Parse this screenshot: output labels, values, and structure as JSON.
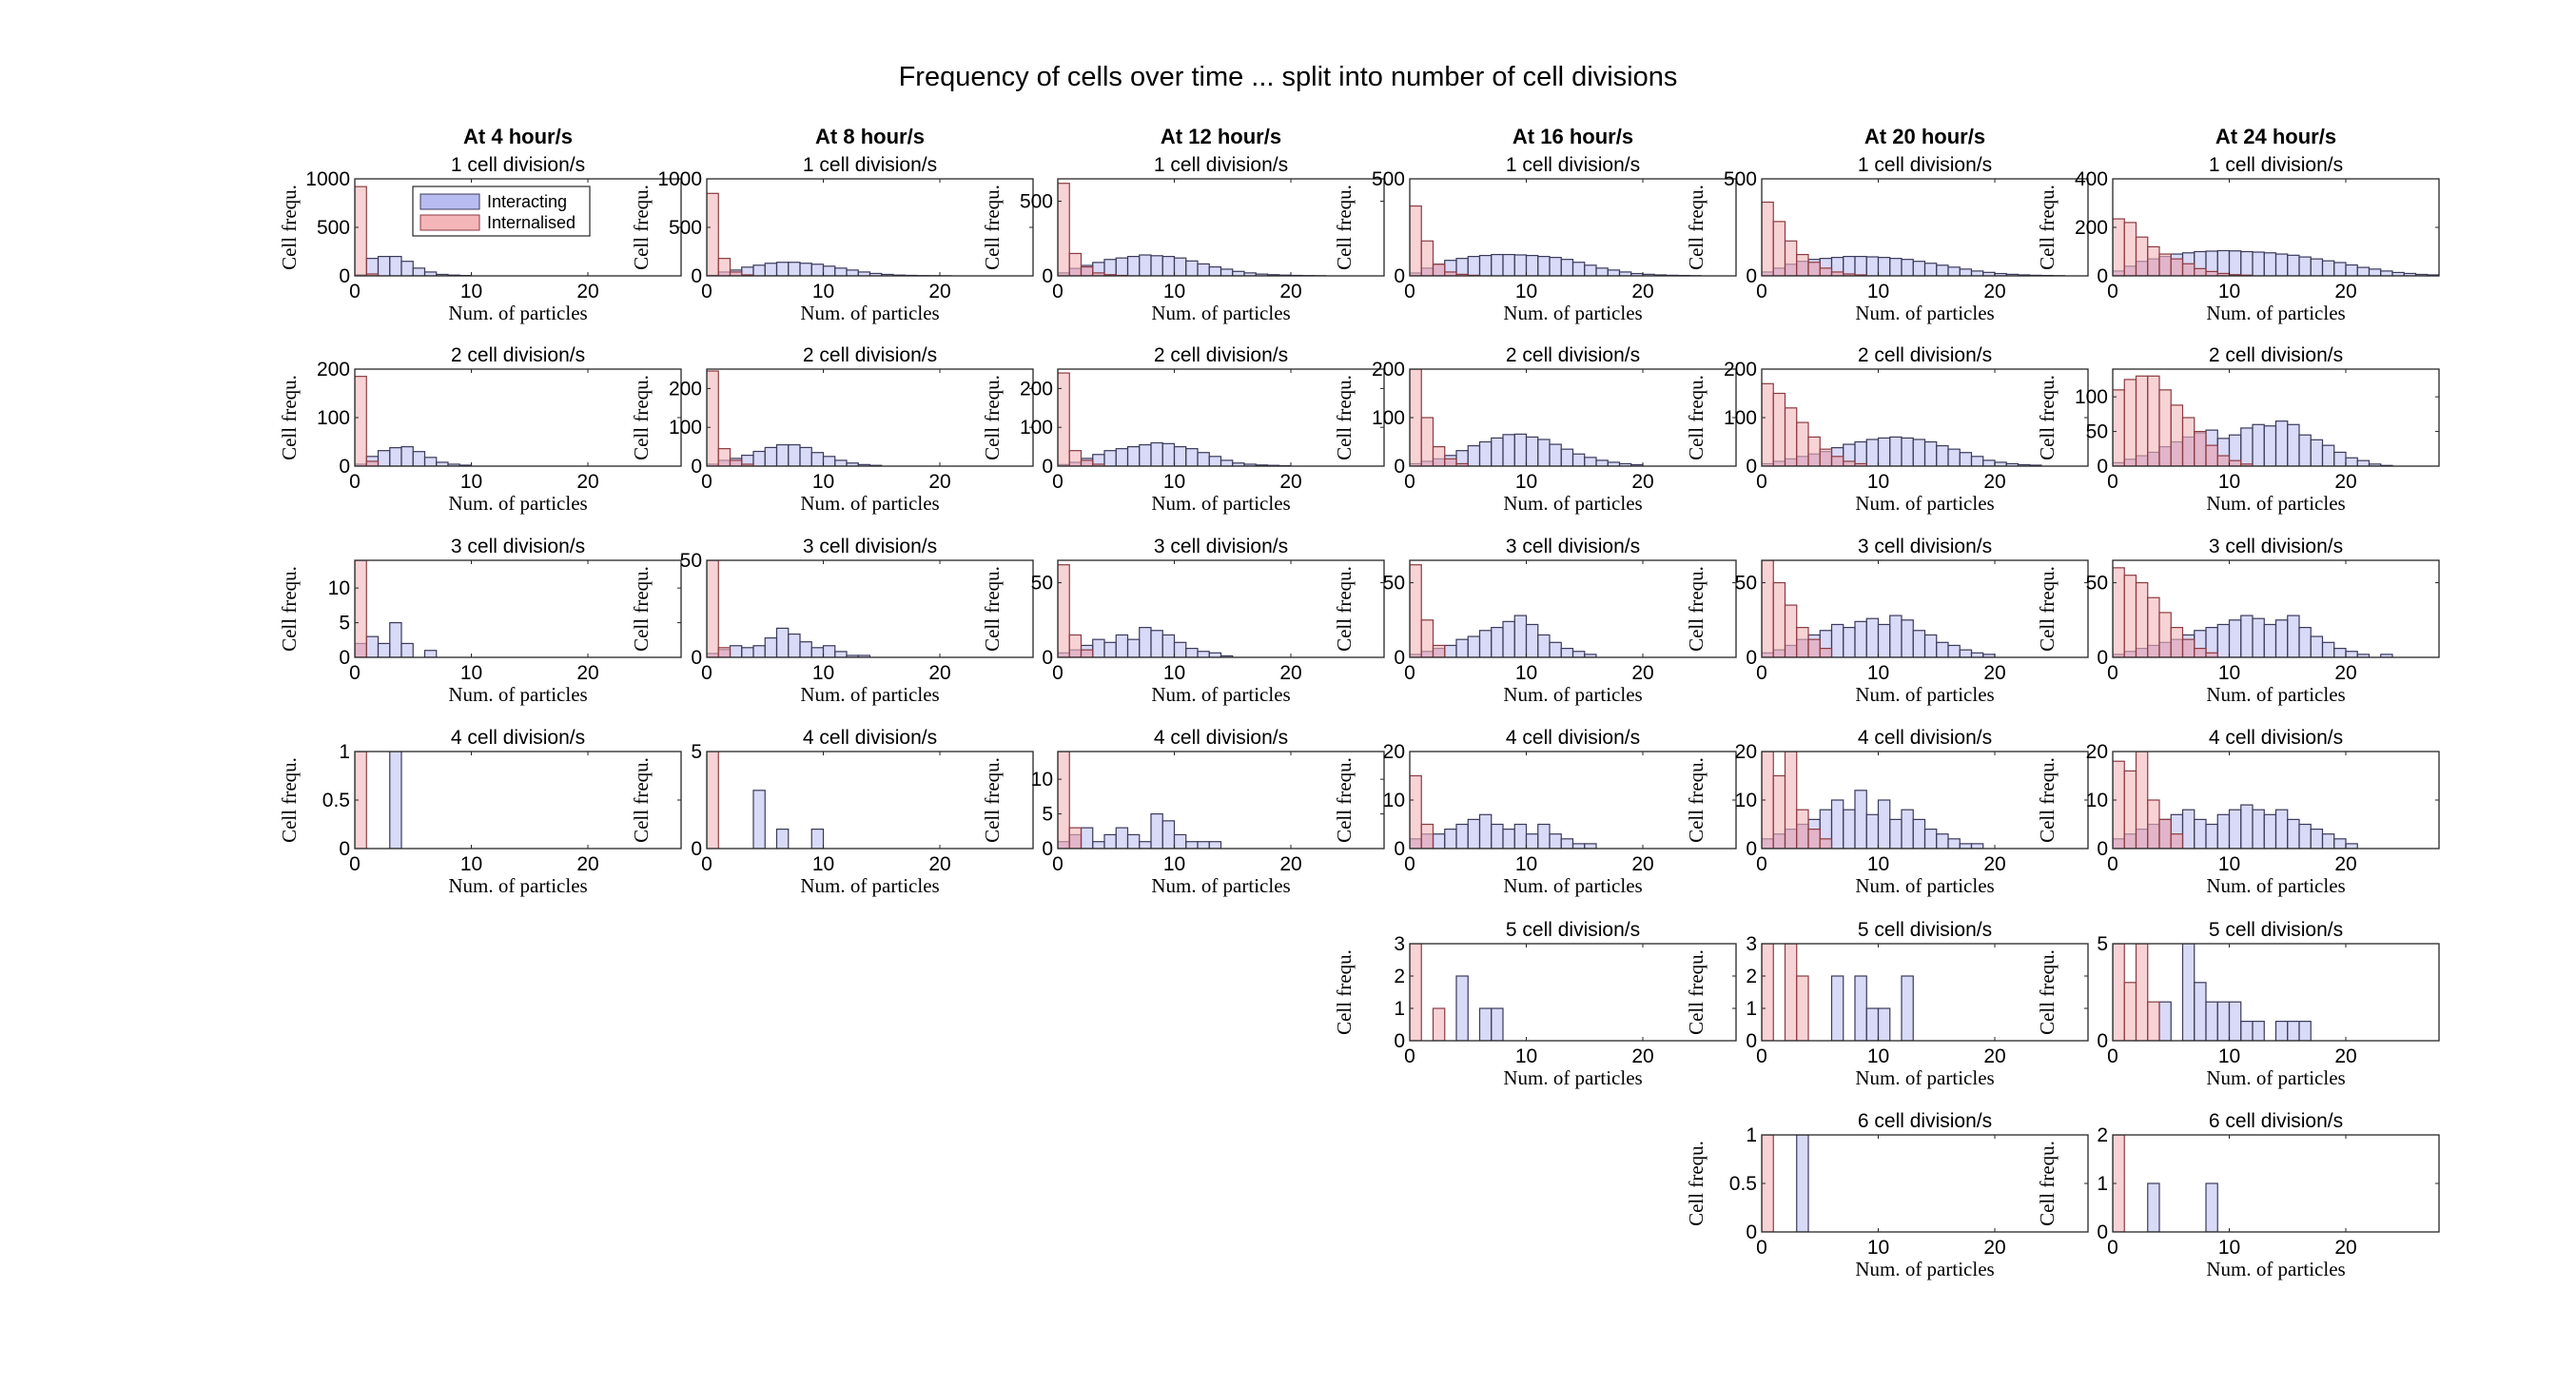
{
  "figure": {
    "title": "Frequency of cells over time ... split into number of cell divisions",
    "colors": {
      "interacting": "#b9bcf0",
      "internalised": "#f4b6b9",
      "interacting_edge": "#3a3a5a",
      "internalised_edge": "#8a3b40",
      "overlap": "#d9a9d2",
      "axis": "#262626"
    }
  },
  "chart_data": {
    "type": "histogram_grid",
    "columns": [
      "At 4 hour/s",
      "At 8 hour/s",
      "At 12 hour/s",
      "At 16 hour/s",
      "At 20 hour/s",
      "At 24 hour/s"
    ],
    "rows": [
      "1 cell division/s",
      "2 cell division/s",
      "3 cell division/s",
      "4 cell division/s",
      "5 cell division/s",
      "6 cell division/s"
    ],
    "xlabel": "Num. of particles",
    "ylabel": "Cell frequ.",
    "xlim": [
      0,
      28
    ],
    "xticks": [
      0,
      10,
      20
    ],
    "legend": {
      "entries": [
        "Interacting",
        "Internalised"
      ],
      "location": "first panel, upper-right"
    },
    "series_colors": {
      "Interacting": "#b9bcf0",
      "Internalised": "#f4b6b9"
    },
    "panels": [
      {
        "col": 0,
        "row": 0,
        "subtitle": "1 cell division/s",
        "ylim": [
          0,
          1000
        ],
        "yticks": [
          0,
          500,
          1000
        ],
        "bw": 1,
        "interacting": [
          10,
          180,
          200,
          200,
          150,
          80,
          40,
          15,
          8,
          4
        ],
        "internalised": [
          920,
          20
        ]
      },
      {
        "col": 0,
        "row": 1,
        "subtitle": "2 cell division/s",
        "ylim": [
          0,
          200
        ],
        "yticks": [
          0,
          100,
          200
        ],
        "bw": 1,
        "interacting": [
          4,
          20,
          32,
          38,
          40,
          30,
          18,
          8,
          4,
          2
        ],
        "internalised": [
          185,
          10
        ]
      },
      {
        "col": 0,
        "row": 2,
        "subtitle": "3 cell division/s",
        "ylim": [
          0,
          14
        ],
        "yticks": [
          0,
          5,
          10
        ],
        "bw": 1,
        "interacting": [
          2,
          3,
          2,
          5,
          2,
          0,
          1
        ],
        "internalised": [
          14
        ]
      },
      {
        "col": 0,
        "row": 3,
        "subtitle": "4 cell division/s",
        "ylim": [
          0,
          1
        ],
        "yticks": [
          0,
          0.5,
          1
        ],
        "bw": 1,
        "interacting": [
          0,
          0,
          0,
          1
        ],
        "internalised": [
          1
        ]
      },
      {
        "col": 1,
        "row": 0,
        "subtitle": "1 cell division/s",
        "ylim": [
          0,
          1000
        ],
        "yticks": [
          0,
          500,
          1000
        ],
        "bw": 1,
        "interacting": [
          5,
          40,
          60,
          90,
          110,
          130,
          140,
          140,
          130,
          120,
          100,
          80,
          60,
          40,
          25,
          15,
          8,
          5,
          3,
          2,
          1,
          0,
          0,
          0,
          0,
          0,
          0,
          0
        ],
        "internalised": [
          850,
          180,
          40,
          10
        ]
      },
      {
        "col": 1,
        "row": 1,
        "subtitle": "2 cell division/s",
        "ylim": [
          0,
          250
        ],
        "yticks": [
          0,
          100,
          200
        ],
        "bw": 1,
        "interacting": [
          5,
          15,
          20,
          28,
          38,
          48,
          55,
          55,
          48,
          35,
          25,
          15,
          8,
          4,
          2
        ],
        "internalised": [
          245,
          45,
          15,
          5
        ]
      },
      {
        "col": 1,
        "row": 2,
        "subtitle": "3 cell division/s",
        "ylim": [
          0,
          50
        ],
        "yticks": [
          0,
          50
        ],
        "bw": 1,
        "interacting": [
          2,
          4,
          6,
          5,
          6,
          10,
          15,
          12,
          8,
          5,
          6,
          3,
          1,
          1
        ],
        "internalised": [
          50,
          5
        ]
      },
      {
        "col": 1,
        "row": 3,
        "subtitle": "4 cell division/s",
        "ylim": [
          0,
          5
        ],
        "yticks": [
          0,
          5
        ],
        "bw": 1,
        "interacting": [
          0,
          0,
          0,
          0,
          3,
          0,
          1,
          0,
          0,
          1
        ],
        "internalised": [
          5
        ]
      },
      {
        "col": 2,
        "row": 0,
        "subtitle": "1 cell division/s",
        "ylim": [
          0,
          650
        ],
        "yticks": [
          0,
          500
        ],
        "bw": 1,
        "interacting": [
          20,
          50,
          70,
          90,
          110,
          120,
          130,
          140,
          135,
          130,
          120,
          100,
          80,
          60,
          45,
          30,
          20,
          12,
          8,
          5,
          3,
          2,
          1,
          0,
          0,
          0,
          0,
          0
        ],
        "internalised": [
          620,
          150,
          60,
          20,
          8,
          3
        ]
      },
      {
        "col": 2,
        "row": 1,
        "subtitle": "2 cell division/s",
        "ylim": [
          0,
          250
        ],
        "yticks": [
          0,
          100,
          200
        ],
        "bw": 1,
        "interacting": [
          4,
          10,
          20,
          30,
          40,
          45,
          50,
          55,
          60,
          58,
          50,
          45,
          35,
          25,
          15,
          8,
          5,
          3,
          2,
          1
        ],
        "internalised": [
          240,
          40,
          15,
          5
        ]
      },
      {
        "col": 2,
        "row": 2,
        "subtitle": "3 cell division/s",
        "ylim": [
          0,
          65
        ],
        "yticks": [
          0,
          50
        ],
        "bw": 1,
        "interacting": [
          3,
          5,
          8,
          12,
          10,
          15,
          12,
          20,
          18,
          15,
          10,
          6,
          4,
          3,
          1
        ],
        "internalised": [
          62,
          15,
          5
        ]
      },
      {
        "col": 2,
        "row": 3,
        "subtitle": "4 cell division/s",
        "ylim": [
          0,
          14
        ],
        "yticks": [
          0,
          5,
          10
        ],
        "bw": 1,
        "interacting": [
          1,
          2,
          3,
          1,
          2,
          3,
          2,
          1,
          5,
          4,
          2,
          1,
          1,
          1
        ],
        "internalised": [
          14,
          3
        ]
      },
      {
        "col": 3,
        "row": 0,
        "subtitle": "1 cell division/s",
        "ylim": [
          0,
          500
        ],
        "yticks": [
          0,
          500
        ],
        "bw": 1,
        "interacting": [
          15,
          40,
          60,
          80,
          90,
          100,
          105,
          110,
          110,
          108,
          105,
          100,
          95,
          85,
          70,
          55,
          40,
          30,
          20,
          12,
          8,
          5,
          3,
          2,
          1,
          0,
          0,
          0
        ],
        "internalised": [
          360,
          180,
          60,
          20,
          8,
          3
        ]
      },
      {
        "col": 3,
        "row": 1,
        "subtitle": "2 cell division/s",
        "ylim": [
          0,
          200
        ],
        "yticks": [
          0,
          100,
          200
        ],
        "bw": 1,
        "interacting": [
          5,
          10,
          15,
          22,
          32,
          42,
          50,
          58,
          65,
          66,
          60,
          55,
          45,
          35,
          25,
          18,
          12,
          8,
          5,
          3
        ],
        "internalised": [
          200,
          100,
          40,
          15,
          5
        ]
      },
      {
        "col": 3,
        "row": 2,
        "subtitle": "3 cell division/s",
        "ylim": [
          0,
          65
        ],
        "yticks": [
          0,
          50
        ],
        "bw": 1,
        "interacting": [
          2,
          4,
          6,
          8,
          12,
          14,
          18,
          20,
          24,
          28,
          22,
          15,
          10,
          6,
          4,
          2
        ],
        "internalised": [
          62,
          25,
          8
        ]
      },
      {
        "col": 3,
        "row": 3,
        "subtitle": "4 cell division/s",
        "ylim": [
          0,
          20
        ],
        "yticks": [
          0,
          10,
          20
        ],
        "bw": 1,
        "interacting": [
          2,
          3,
          3,
          4,
          5,
          6,
          7,
          5,
          4,
          5,
          3,
          5,
          3,
          2,
          1,
          1
        ],
        "internalised": [
          15,
          5
        ]
      },
      {
        "col": 3,
        "row": 4,
        "subtitle": "5 cell division/s",
        "ylim": [
          0,
          3
        ],
        "yticks": [
          0,
          1,
          2,
          3
        ],
        "bw": 1,
        "interacting": [
          0,
          0,
          0,
          0,
          2,
          0,
          1,
          1
        ],
        "internalised": [
          3,
          0,
          1
        ]
      },
      {
        "col": 4,
        "row": 0,
        "subtitle": "1 cell division/s",
        "ylim": [
          0,
          500
        ],
        "yticks": [
          0,
          500
        ],
        "bw": 1,
        "interacting": [
          20,
          40,
          60,
          75,
          85,
          90,
          95,
          100,
          100,
          98,
          95,
          90,
          85,
          75,
          65,
          55,
          45,
          35,
          25,
          18,
          12,
          8,
          5,
          3,
          2,
          1,
          0,
          0
        ],
        "internalised": [
          380,
          280,
          180,
          110,
          70,
          40,
          20,
          10,
          5
        ]
      },
      {
        "col": 4,
        "row": 1,
        "subtitle": "2 cell division/s",
        "ylim": [
          0,
          200
        ],
        "yticks": [
          0,
          100,
          200
        ],
        "bw": 1,
        "interacting": [
          5,
          10,
          15,
          20,
          25,
          30,
          38,
          45,
          50,
          55,
          58,
          60,
          58,
          55,
          50,
          42,
          35,
          28,
          20,
          12,
          8,
          5,
          3,
          2
        ],
        "internalised": [
          170,
          150,
          120,
          90,
          60,
          35,
          20,
          10,
          5
        ]
      },
      {
        "col": 4,
        "row": 2,
        "subtitle": "3 cell division/s",
        "ylim": [
          0,
          65
        ],
        "yticks": [
          0,
          50
        ],
        "bw": 1,
        "interacting": [
          3,
          5,
          8,
          12,
          15,
          18,
          22,
          20,
          24,
          26,
          22,
          28,
          25,
          18,
          15,
          10,
          8,
          5,
          3,
          2
        ],
        "internalised": [
          65,
          50,
          35,
          20,
          12,
          6
        ]
      },
      {
        "col": 4,
        "row": 3,
        "subtitle": "4 cell division/s",
        "ylim": [
          0,
          20
        ],
        "yticks": [
          0,
          10,
          20
        ],
        "bw": 1,
        "interacting": [
          2,
          3,
          4,
          5,
          6,
          8,
          10,
          8,
          12,
          7,
          10,
          6,
          8,
          6,
          4,
          3,
          2,
          1,
          1
        ],
        "internalised": [
          20,
          15,
          20,
          8,
          4,
          2
        ]
      },
      {
        "col": 4,
        "row": 4,
        "subtitle": "5 cell division/s",
        "ylim": [
          0,
          3
        ],
        "yticks": [
          0,
          1,
          2,
          3
        ],
        "bw": 1,
        "interacting": [
          0,
          0,
          0,
          0,
          0,
          0,
          2,
          0,
          2,
          1,
          1,
          0,
          2
        ],
        "internalised": [
          3,
          0,
          3,
          2
        ]
      },
      {
        "col": 4,
        "row": 5,
        "subtitle": "6 cell division/s",
        "ylim": [
          0,
          1
        ],
        "yticks": [
          0,
          0.5,
          1
        ],
        "bw": 1,
        "interacting": [
          0,
          0,
          0,
          1
        ],
        "internalised": [
          1
        ]
      },
      {
        "col": 5,
        "row": 0,
        "subtitle": "1 cell division/s",
        "ylim": [
          0,
          400
        ],
        "yticks": [
          0,
          200,
          400
        ],
        "bw": 1,
        "interacting": [
          20,
          40,
          60,
          70,
          80,
          90,
          95,
          100,
          102,
          104,
          103,
          100,
          98,
          95,
          90,
          85,
          78,
          70,
          62,
          55,
          45,
          35,
          28,
          20,
          14,
          10,
          6,
          4
        ],
        "internalised": [
          235,
          220,
          160,
          120,
          90,
          70,
          50,
          30,
          18,
          10,
          5,
          3
        ]
      },
      {
        "col": 5,
        "row": 1,
        "subtitle": "2 cell division/s",
        "ylim": [
          0,
          140
        ],
        "yticks": [
          0,
          50,
          100
        ],
        "bw": 1,
        "interacting": [
          5,
          10,
          15,
          20,
          28,
          35,
          42,
          48,
          52,
          40,
          45,
          55,
          60,
          58,
          65,
          60,
          45,
          38,
          30,
          20,
          12,
          8,
          3,
          1
        ],
        "internalised": [
          110,
          125,
          130,
          130,
          110,
          88,
          70,
          50,
          30,
          15,
          8,
          3
        ]
      },
      {
        "col": 5,
        "row": 2,
        "subtitle": "3 cell division/s",
        "ylim": [
          0,
          65
        ],
        "yticks": [
          0,
          50
        ],
        "bw": 1,
        "interacting": [
          2,
          4,
          6,
          8,
          10,
          12,
          15,
          18,
          20,
          22,
          25,
          28,
          26,
          22,
          25,
          28,
          20,
          14,
          10,
          6,
          4,
          2,
          0,
          2
        ],
        "internalised": [
          60,
          55,
          50,
          40,
          30,
          20,
          12,
          6,
          3
        ]
      },
      {
        "col": 5,
        "row": 3,
        "subtitle": "4 cell division/s",
        "ylim": [
          0,
          20
        ],
        "yticks": [
          0,
          10,
          20
        ],
        "bw": 1,
        "interacting": [
          2,
          3,
          4,
          5,
          6,
          7,
          8,
          6,
          5,
          7,
          8,
          9,
          8,
          7,
          8,
          6,
          5,
          4,
          3,
          2,
          1
        ],
        "internalised": [
          18,
          16,
          20,
          10,
          6,
          3
        ]
      },
      {
        "col": 5,
        "row": 4,
        "subtitle": "5 cell division/s",
        "ylim": [
          0,
          5
        ],
        "yticks": [
          0,
          5
        ],
        "bw": 1,
        "interacting": [
          0,
          0,
          0,
          0,
          2,
          0,
          5,
          3,
          2,
          2,
          2,
          1,
          1,
          0,
          1,
          1,
          1
        ],
        "internalised": [
          5,
          3,
          5,
          2
        ]
      },
      {
        "col": 5,
        "row": 5,
        "subtitle": "6 cell division/s",
        "ylim": [
          0,
          2
        ],
        "yticks": [
          0,
          1,
          2
        ],
        "bw": 1,
        "interacting": [
          0,
          0,
          0,
          1,
          0,
          0,
          0,
          0,
          1
        ],
        "internalised": [
          2
        ]
      }
    ]
  }
}
